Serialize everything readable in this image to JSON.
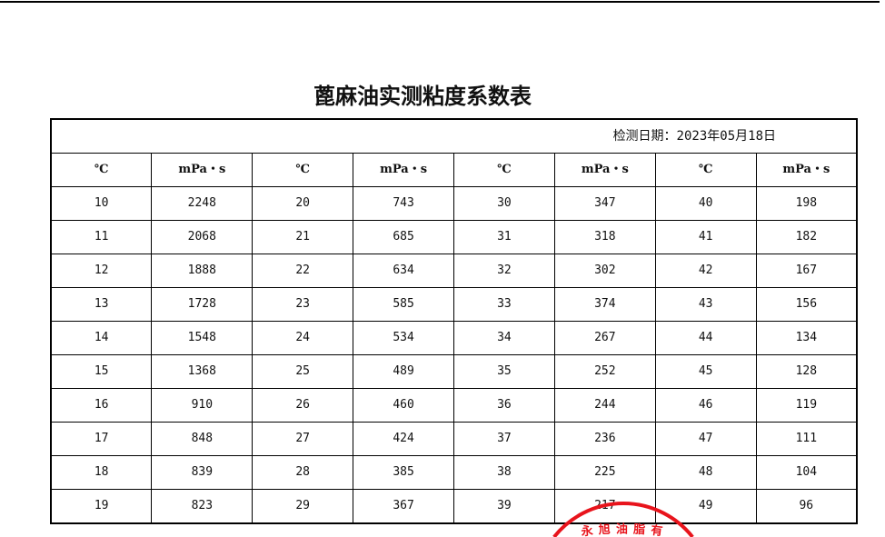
{
  "title": "蓖麻油实测粘度系数表",
  "date_label": "检测日期：2023年05月18日",
  "headers": [
    "℃",
    "mPa・s",
    "℃",
    "mPa・s",
    "℃",
    "mPa・s",
    "℃",
    "mPa・s"
  ],
  "rows": [
    [
      "10",
      "2248",
      "20",
      "743",
      "30",
      "347",
      "40",
      "198"
    ],
    [
      "11",
      "2068",
      "21",
      "685",
      "31",
      "318",
      "41",
      "182"
    ],
    [
      "12",
      "1888",
      "22",
      "634",
      "32",
      "302",
      "42",
      "167"
    ],
    [
      "13",
      "1728",
      "23",
      "585",
      "33",
      "374",
      "43",
      "156"
    ],
    [
      "14",
      "1548",
      "24",
      "534",
      "34",
      "267",
      "44",
      "134"
    ],
    [
      "15",
      "1368",
      "25",
      "489",
      "35",
      "252",
      "45",
      "128"
    ],
    [
      "16",
      "910",
      "26",
      "460",
      "36",
      "244",
      "46",
      "119"
    ],
    [
      "17",
      "848",
      "27",
      "424",
      "37",
      "236",
      "47",
      "111"
    ],
    [
      "18",
      "839",
      "28",
      "385",
      "38",
      "225",
      "48",
      "104"
    ],
    [
      "19",
      "823",
      "29",
      "367",
      "39",
      "217",
      "49",
      "96"
    ]
  ],
  "stamp": {
    "text": "永旭油脂有",
    "color": "#e8141c"
  }
}
